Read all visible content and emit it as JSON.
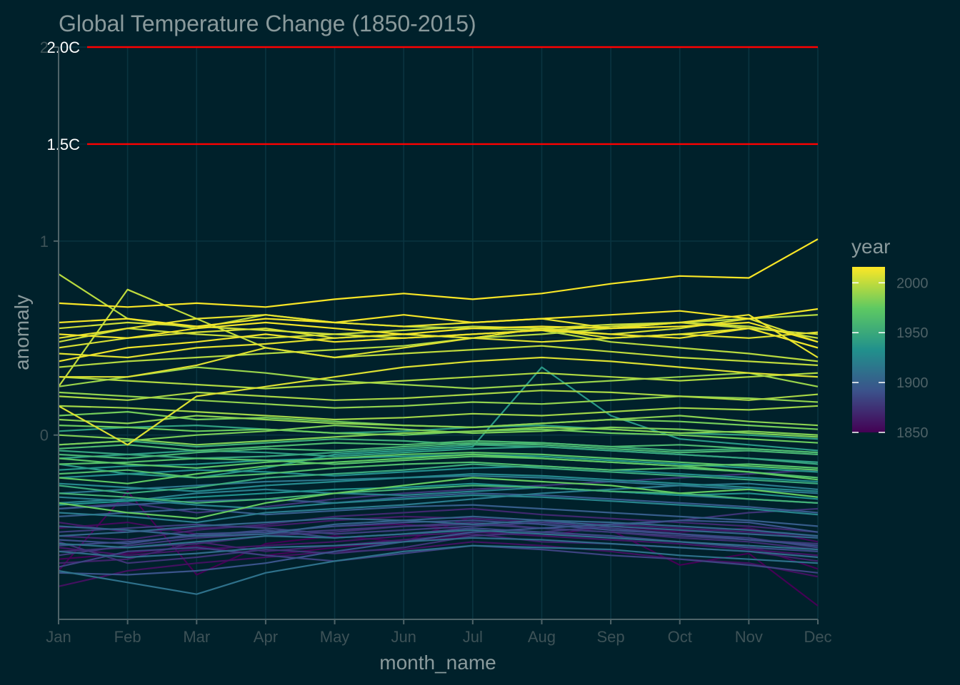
{
  "chart_data": {
    "type": "line",
    "title": "Global Temperature Change (1850-2015)",
    "xlabel": "month_name",
    "ylabel": "anomaly",
    "categories": [
      "Jan",
      "Feb",
      "Mar",
      "Apr",
      "May",
      "Jun",
      "Jul",
      "Aug",
      "Sep",
      "Oct",
      "Nov",
      "Dec"
    ],
    "ylim": [
      -0.95,
      2.0
    ],
    "y_ticks": [
      {
        "value": 0,
        "label": "0"
      },
      {
        "value": 1,
        "label": "1"
      },
      {
        "value": 2,
        "label": "2"
      }
    ],
    "grid": true,
    "reference_lines": [
      {
        "value": 2.0,
        "label": "2.0C",
        "color": "#ff0000"
      },
      {
        "value": 1.5,
        "label": "1.5C",
        "color": "#ff0000"
      }
    ],
    "color_scale": {
      "title": "year",
      "palette": "viridis",
      "range": [
        1850,
        2016
      ],
      "ticks": [
        {
          "value": 2000,
          "label": "2000"
        },
        {
          "value": 1950,
          "label": "1950"
        },
        {
          "value": 1900,
          "label": "1900"
        },
        {
          "value": 1850,
          "label": "1850"
        }
      ]
    },
    "series": [
      {
        "year": 1850,
        "values": [
          -0.7,
          -0.29,
          -0.72,
          -0.56,
          -0.52,
          -0.55,
          -0.42,
          -0.44,
          -0.49,
          -0.67,
          -0.61,
          -0.88
        ]
      },
      {
        "year": 1852,
        "values": [
          -0.64,
          -0.61,
          -0.57,
          -0.62,
          -0.58,
          -0.55,
          -0.52,
          -0.5,
          -0.53,
          -0.55,
          -0.57,
          -0.69
        ]
      },
      {
        "year": 1855,
        "values": [
          -0.48,
          -0.45,
          -0.51,
          -0.5,
          -0.47,
          -0.46,
          -0.49,
          -0.52,
          -0.47,
          -0.5,
          -0.48,
          -0.55
        ]
      },
      {
        "year": 1858,
        "values": [
          -0.78,
          -0.7,
          -0.66,
          -0.63,
          -0.6,
          -0.59,
          -0.55,
          -0.57,
          -0.6,
          -0.64,
          -0.66,
          -0.73
        ]
      },
      {
        "year": 1861,
        "values": [
          -0.58,
          -0.62,
          -0.59,
          -0.57,
          -0.55,
          -0.52,
          -0.5,
          -0.52,
          -0.54,
          -0.56,
          -0.59,
          -0.62
        ]
      },
      {
        "year": 1864,
        "values": [
          -0.45,
          -0.5,
          -0.48,
          -0.47,
          -0.44,
          -0.42,
          -0.43,
          -0.45,
          -0.46,
          -0.48,
          -0.5,
          -0.52
        ]
      },
      {
        "year": 1867,
        "values": [
          -0.66,
          -0.64,
          -0.55,
          -0.6,
          -0.57,
          -0.54,
          -0.51,
          -0.55,
          -0.56,
          -0.58,
          -0.6,
          -0.65
        ]
      },
      {
        "year": 1870,
        "values": [
          -0.52,
          -0.54,
          -0.49,
          -0.46,
          -0.42,
          -0.4,
          -0.38,
          -0.41,
          -0.43,
          -0.45,
          -0.47,
          -0.5
        ]
      },
      {
        "year": 1873,
        "values": [
          -0.6,
          -0.58,
          -0.56,
          -0.52,
          -0.5,
          -0.47,
          -0.45,
          -0.48,
          -0.5,
          -0.53,
          -0.55,
          -0.59
        ]
      },
      {
        "year": 1876,
        "values": [
          -0.55,
          -0.66,
          -0.63,
          -0.59,
          -0.61,
          -0.58,
          -0.52,
          -0.5,
          -0.47,
          -0.44,
          -0.4,
          -0.38
        ]
      },
      {
        "year": 1877,
        "values": [
          -0.38,
          -0.35,
          -0.4,
          -0.37,
          -0.33,
          -0.3,
          -0.28,
          -0.26,
          -0.24,
          -0.22,
          -0.2,
          -0.18
        ]
      },
      {
        "year": 1879,
        "values": [
          -0.62,
          -0.57,
          -0.53,
          -0.51,
          -0.49,
          -0.47,
          -0.46,
          -0.48,
          -0.5,
          -0.52,
          -0.54,
          -0.56
        ]
      },
      {
        "year": 1882,
        "values": [
          -0.5,
          -0.48,
          -0.46,
          -0.48,
          -0.51,
          -0.49,
          -0.47,
          -0.45,
          -0.48,
          -0.51,
          -0.53,
          -0.58
        ]
      },
      {
        "year": 1884,
        "values": [
          -0.68,
          -0.6,
          -0.58,
          -0.62,
          -0.65,
          -0.61,
          -0.57,
          -0.59,
          -0.62,
          -0.64,
          -0.67,
          -0.71
        ]
      },
      {
        "year": 1887,
        "values": [
          -0.57,
          -0.55,
          -0.52,
          -0.49,
          -0.53,
          -0.51,
          -0.48,
          -0.5,
          -0.52,
          -0.55,
          -0.58,
          -0.6
        ]
      },
      {
        "year": 1890,
        "values": [
          -0.54,
          -0.56,
          -0.51,
          -0.5,
          -0.47,
          -0.45,
          -0.44,
          -0.46,
          -0.49,
          -0.51,
          -0.54,
          -0.57
        ]
      },
      {
        "year": 1893,
        "values": [
          -0.71,
          -0.72,
          -0.7,
          -0.66,
          -0.6,
          -0.55,
          -0.5,
          -0.48,
          -0.46,
          -0.44,
          -0.45,
          -0.5
        ]
      },
      {
        "year": 1896,
        "values": [
          -0.38,
          -0.36,
          -0.34,
          -0.33,
          -0.35,
          -0.32,
          -0.3,
          -0.31,
          -0.33,
          -0.35,
          -0.37,
          -0.4
        ]
      },
      {
        "year": 1899,
        "values": [
          -0.42,
          -0.4,
          -0.38,
          -0.41,
          -0.39,
          -0.37,
          -0.36,
          -0.38,
          -0.4,
          -0.42,
          -0.44,
          -0.47
        ]
      },
      {
        "year": 1902,
        "values": [
          -0.47,
          -0.49,
          -0.52,
          -0.51,
          -0.46,
          -0.44,
          -0.42,
          -0.44,
          -0.47,
          -0.49,
          -0.51,
          -0.53
        ]
      },
      {
        "year": 1905,
        "values": [
          -0.52,
          -0.5,
          -0.47,
          -0.45,
          -0.43,
          -0.44,
          -0.46,
          -0.44,
          -0.45,
          -0.47,
          -0.49,
          -0.52
        ]
      },
      {
        "year": 1908,
        "values": [
          -0.6,
          -0.63,
          -0.61,
          -0.58,
          -0.57,
          -0.55,
          -0.53,
          -0.54,
          -0.56,
          -0.58,
          -0.6,
          -0.63
        ]
      },
      {
        "year": 1911,
        "values": [
          -0.56,
          -0.58,
          -0.55,
          -0.52,
          -0.53,
          -0.51,
          -0.49,
          -0.51,
          -0.53,
          -0.55,
          -0.57,
          -0.59
        ]
      },
      {
        "year": 1912,
        "values": [
          -0.7,
          -0.76,
          -0.82,
          -0.71,
          -0.65,
          -0.6,
          -0.57,
          -0.58,
          -0.59,
          -0.62,
          -0.64,
          -0.66
        ]
      },
      {
        "year": 1915,
        "values": [
          -0.3,
          -0.28,
          -0.26,
          -0.24,
          -0.23,
          -0.22,
          -0.21,
          -0.22,
          -0.24,
          -0.26,
          -0.28,
          -0.3
        ]
      },
      {
        "year": 1918,
        "values": [
          -0.4,
          -0.42,
          -0.45,
          -0.4,
          -0.38,
          -0.36,
          -0.33,
          -0.3,
          -0.28,
          -0.26,
          -0.25,
          -0.28
        ]
      },
      {
        "year": 1921,
        "values": [
          -0.32,
          -0.34,
          -0.3,
          -0.28,
          -0.3,
          -0.31,
          -0.29,
          -0.27,
          -0.29,
          -0.31,
          -0.33,
          -0.35
        ]
      },
      {
        "year": 1924,
        "values": [
          -0.35,
          -0.33,
          -0.36,
          -0.38,
          -0.35,
          -0.33,
          -0.31,
          -0.32,
          -0.34,
          -0.36,
          -0.38,
          -0.41
        ]
      },
      {
        "year": 1927,
        "values": [
          -0.25,
          -0.27,
          -0.29,
          -0.26,
          -0.24,
          -0.22,
          -0.2,
          -0.21,
          -0.23,
          -0.25,
          -0.27,
          -0.29
        ]
      },
      {
        "year": 1930,
        "values": [
          -0.22,
          -0.2,
          -0.18,
          -0.19,
          -0.21,
          -0.19,
          -0.17,
          -0.16,
          -0.18,
          -0.2,
          -0.22,
          -0.24
        ]
      },
      {
        "year": 1933,
        "values": [
          -0.36,
          -0.34,
          -0.32,
          -0.3,
          -0.28,
          -0.27,
          -0.25,
          -0.27,
          -0.29,
          -0.31,
          -0.3,
          -0.33
        ]
      },
      {
        "year": 1936,
        "values": [
          -0.18,
          -0.16,
          -0.15,
          -0.13,
          -0.12,
          -0.11,
          -0.1,
          -0.11,
          -0.13,
          -0.15,
          -0.17,
          -0.19
        ]
      },
      {
        "year": 1939,
        "values": [
          -0.15,
          -0.2,
          -0.22,
          -0.17,
          -0.1,
          -0.08,
          -0.06,
          0.35,
          0.1,
          -0.02,
          -0.05,
          -0.08
        ]
      },
      {
        "year": 1942,
        "values": [
          -0.12,
          -0.1,
          -0.08,
          -0.09,
          -0.11,
          -0.09,
          -0.07,
          -0.06,
          -0.08,
          -0.1,
          -0.12,
          -0.14
        ]
      },
      {
        "year": 1944,
        "values": [
          0.02,
          0.04,
          0.05,
          0.03,
          0.01,
          0.02,
          0.04,
          0.05,
          0.03,
          0.01,
          0.0,
          -0.02
        ]
      },
      {
        "year": 1947,
        "values": [
          -0.08,
          -0.1,
          -0.12,
          -0.11,
          -0.09,
          -0.07,
          -0.05,
          -0.06,
          -0.08,
          -0.1,
          -0.12,
          -0.15
        ]
      },
      {
        "year": 1950,
        "values": [
          -0.26,
          -0.3,
          -0.27,
          -0.22,
          -0.2,
          -0.18,
          -0.15,
          -0.17,
          -0.19,
          -0.21,
          -0.23,
          -0.25
        ]
      },
      {
        "year": 1953,
        "values": [
          -0.05,
          -0.03,
          -0.06,
          -0.04,
          -0.02,
          -0.03,
          -0.05,
          -0.04,
          -0.06,
          -0.08,
          -0.07,
          -0.09
        ]
      },
      {
        "year": 1956,
        "values": [
          -0.3,
          -0.32,
          -0.35,
          -0.33,
          -0.3,
          -0.28,
          -0.26,
          -0.27,
          -0.29,
          -0.3,
          -0.33,
          -0.35
        ]
      },
      {
        "year": 1959,
        "values": [
          -0.1,
          -0.12,
          -0.09,
          -0.07,
          -0.08,
          -0.06,
          -0.04,
          -0.05,
          -0.07,
          -0.09,
          -0.08,
          -0.1
        ]
      },
      {
        "year": 1962,
        "values": [
          -0.07,
          -0.05,
          -0.08,
          -0.06,
          -0.04,
          -0.05,
          -0.03,
          -0.04,
          -0.06,
          -0.05,
          -0.07,
          -0.09
        ]
      },
      {
        "year": 1965,
        "values": [
          -0.2,
          -0.18,
          -0.22,
          -0.2,
          -0.17,
          -0.15,
          -0.14,
          -0.16,
          -0.18,
          -0.17,
          -0.19,
          -0.22
        ]
      },
      {
        "year": 1968,
        "values": [
          -0.15,
          -0.14,
          -0.12,
          -0.13,
          -0.15,
          -0.13,
          -0.11,
          -0.12,
          -0.14,
          -0.16,
          -0.15,
          -0.17
        ]
      },
      {
        "year": 1971,
        "values": [
          -0.12,
          -0.15,
          -0.17,
          -0.14,
          -0.12,
          -0.1,
          -0.09,
          -0.1,
          -0.12,
          -0.14,
          -0.16,
          -0.18
        ]
      },
      {
        "year": 1974,
        "values": [
          -0.22,
          -0.25,
          -0.2,
          -0.16,
          -0.14,
          -0.12,
          -0.1,
          -0.12,
          -0.14,
          -0.16,
          -0.19,
          -0.23
        ]
      },
      {
        "year": 1976,
        "values": [
          -0.35,
          -0.4,
          -0.43,
          -0.35,
          -0.3,
          -0.26,
          -0.22,
          -0.24,
          -0.26,
          -0.3,
          -0.28,
          -0.32
        ]
      },
      {
        "year": 1978,
        "values": [
          0.05,
          0.04,
          0.02,
          0.03,
          0.01,
          0.0,
          0.02,
          0.03,
          0.01,
          0.0,
          -0.02,
          -0.04
        ]
      },
      {
        "year": 1980,
        "values": [
          0.1,
          0.12,
          0.08,
          0.09,
          0.07,
          0.05,
          0.04,
          0.06,
          0.08,
          0.07,
          0.05,
          0.03
        ]
      },
      {
        "year": 1982,
        "values": [
          -0.05,
          -0.03,
          0.0,
          0.02,
          0.05,
          0.03,
          0.01,
          0.02,
          0.04,
          0.03,
          0.01,
          -0.01
        ]
      },
      {
        "year": 1984,
        "values": [
          0.0,
          -0.02,
          -0.05,
          -0.03,
          -0.01,
          0.01,
          0.02,
          0.04,
          0.03,
          0.01,
          0.02,
          0.0
        ]
      },
      {
        "year": 1986,
        "values": [
          0.08,
          0.06,
          0.1,
          0.08,
          0.06,
          0.05,
          0.04,
          0.06,
          0.08,
          0.1,
          0.07,
          0.05
        ]
      },
      {
        "year": 1988,
        "values": [
          0.22,
          0.2,
          0.18,
          0.16,
          0.14,
          0.15,
          0.17,
          0.16,
          0.18,
          0.2,
          0.19,
          0.17
        ]
      },
      {
        "year": 1990,
        "values": [
          0.25,
          0.3,
          0.35,
          0.32,
          0.28,
          0.26,
          0.24,
          0.26,
          0.28,
          0.3,
          0.32,
          0.25
        ]
      },
      {
        "year": 1992,
        "values": [
          0.15,
          0.14,
          0.12,
          0.1,
          0.08,
          0.09,
          0.11,
          0.1,
          0.12,
          0.14,
          0.13,
          0.15
        ]
      },
      {
        "year": 1994,
        "values": [
          0.2,
          0.18,
          0.22,
          0.2,
          0.18,
          0.19,
          0.21,
          0.23,
          0.22,
          0.2,
          0.18,
          0.21
        ]
      },
      {
        "year": 1996,
        "values": [
          0.3,
          0.28,
          0.26,
          0.24,
          0.26,
          0.28,
          0.3,
          0.32,
          0.3,
          0.28,
          0.3,
          0.32
        ]
      },
      {
        "year": 1997,
        "values": [
          0.35,
          0.38,
          0.4,
          0.42,
          0.44,
          0.46,
          0.5,
          0.52,
          0.55,
          0.58,
          0.6,
          0.62
        ]
      },
      {
        "year": 1998,
        "values": [
          0.83,
          0.6,
          0.55,
          0.62,
          0.58,
          0.56,
          0.55,
          0.54,
          0.48,
          0.45,
          0.42,
          0.38
        ]
      },
      {
        "year": 2000,
        "values": [
          0.25,
          0.75,
          0.6,
          0.45,
          0.4,
          0.42,
          0.44,
          0.46,
          0.43,
          0.4,
          0.38,
          0.36
        ]
      },
      {
        "year": 2002,
        "values": [
          0.48,
          0.55,
          0.52,
          0.5,
          0.52,
          0.54,
          0.56,
          0.55,
          0.57,
          0.58,
          0.56,
          0.5
        ]
      },
      {
        "year": 2004,
        "values": [
          0.55,
          0.58,
          0.56,
          0.54,
          0.52,
          0.5,
          0.52,
          0.54,
          0.56,
          0.58,
          0.55,
          0.52
        ]
      },
      {
        "year": 2006,
        "values": [
          0.45,
          0.5,
          0.53,
          0.55,
          0.5,
          0.52,
          0.5,
          0.55,
          0.52,
          0.55,
          0.6,
          0.48
        ]
      },
      {
        "year": 2007,
        "values": [
          0.15,
          -0.05,
          0.2,
          0.25,
          0.3,
          0.35,
          0.38,
          0.4,
          0.38,
          0.35,
          0.32,
          0.3
        ]
      },
      {
        "year": 2008,
        "values": [
          0.3,
          0.3,
          0.36,
          0.45,
          0.4,
          0.45,
          0.5,
          0.55,
          0.5,
          0.52,
          0.55,
          0.45
        ]
      },
      {
        "year": 2009,
        "values": [
          0.42,
          0.4,
          0.45,
          0.47,
          0.5,
          0.52,
          0.5,
          0.48,
          0.5,
          0.52,
          0.5,
          0.53
        ]
      },
      {
        "year": 2010,
        "values": [
          0.5,
          0.55,
          0.6,
          0.62,
          0.58,
          0.56,
          0.58,
          0.6,
          0.55,
          0.58,
          0.62,
          0.4
        ]
      },
      {
        "year": 2012,
        "values": [
          0.38,
          0.45,
          0.48,
          0.52,
          0.48,
          0.5,
          0.52,
          0.54,
          0.52,
          0.5,
          0.55,
          0.45
        ]
      },
      {
        "year": 2013,
        "values": [
          0.52,
          0.5,
          0.55,
          0.58,
          0.55,
          0.52,
          0.55,
          0.56,
          0.55,
          0.56,
          0.58,
          0.48
        ]
      },
      {
        "year": 2014,
        "values": [
          0.58,
          0.6,
          0.56,
          0.6,
          0.58,
          0.62,
          0.58,
          0.6,
          0.62,
          0.64,
          0.6,
          0.65
        ]
      },
      {
        "year": 2015,
        "values": [
          0.68,
          0.66,
          0.68,
          0.66,
          0.7,
          0.73,
          0.7,
          0.73,
          0.78,
          0.82,
          0.81,
          1.01
        ]
      }
    ]
  }
}
